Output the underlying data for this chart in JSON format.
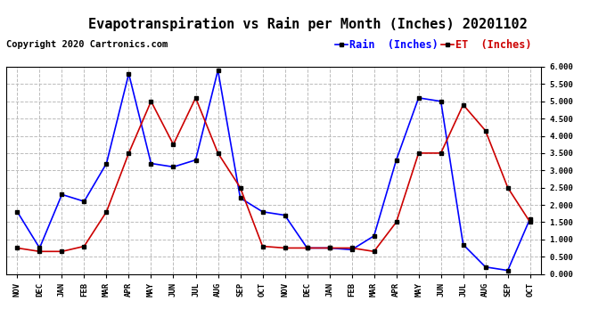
{
  "title": "Evapotranspiration vs Rain per Month (Inches) 20201102",
  "copyright_text": "Copyright 2020 Cartronics.com",
  "legend_rain": "Rain  (Inches)",
  "legend_et": "ET  (Inches)",
  "months": [
    "NOV",
    "DEC",
    "JAN",
    "FEB",
    "MAR",
    "APR",
    "MAY",
    "JUN",
    "JUL",
    "AUG",
    "SEP",
    "OCT",
    "NOV",
    "DEC",
    "JAN",
    "FEB",
    "MAR",
    "APR",
    "MAY",
    "JUN",
    "JUL",
    "AUG",
    "SEP",
    "OCT"
  ],
  "rain_inches": [
    1.8,
    0.75,
    2.3,
    2.1,
    3.2,
    5.8,
    3.2,
    3.1,
    3.3,
    5.9,
    2.2,
    1.8,
    1.7,
    0.75,
    0.75,
    0.7,
    1.1,
    3.3,
    5.1,
    5.0,
    0.85,
    0.2,
    0.1,
    1.6
  ],
  "et_inches": [
    0.75,
    0.65,
    0.65,
    0.8,
    1.8,
    3.5,
    5.0,
    3.75,
    5.1,
    3.5,
    2.5,
    0.8,
    0.75,
    0.75,
    0.75,
    0.75,
    0.65,
    1.5,
    3.5,
    3.5,
    4.9,
    4.15,
    2.5,
    1.5
  ],
  "rain_color": "#0000ff",
  "et_color": "#cc0000",
  "marker_color": "#000000",
  "ylim": [
    0.0,
    6.0
  ],
  "yticks": [
    0.0,
    0.5,
    1.0,
    1.5,
    2.0,
    2.5,
    3.0,
    3.5,
    4.0,
    4.5,
    5.0,
    5.5,
    6.0
  ],
  "background_color": "#ffffff",
  "grid_color": "#bbbbbb",
  "title_fontsize": 11,
  "tick_fontsize": 6.5,
  "legend_fontsize": 8.5,
  "copyright_fontsize": 7.5
}
